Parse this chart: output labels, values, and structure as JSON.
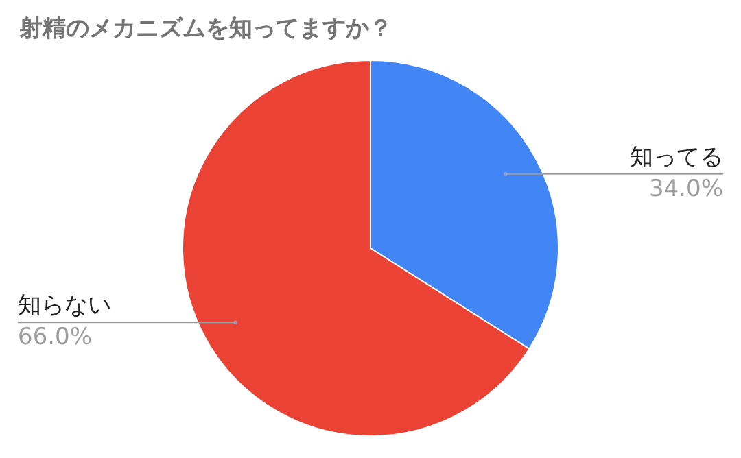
{
  "chart_data": {
    "type": "pie",
    "title": "射精のメカニズムを知ってますか？",
    "categories": [
      "知ってる",
      "知らない"
    ],
    "values": [
      34.0,
      66.0
    ],
    "colors": [
      "#4285f4",
      "#ea4335"
    ],
    "value_labels": [
      "34.0%",
      "66.0%"
    ]
  }
}
